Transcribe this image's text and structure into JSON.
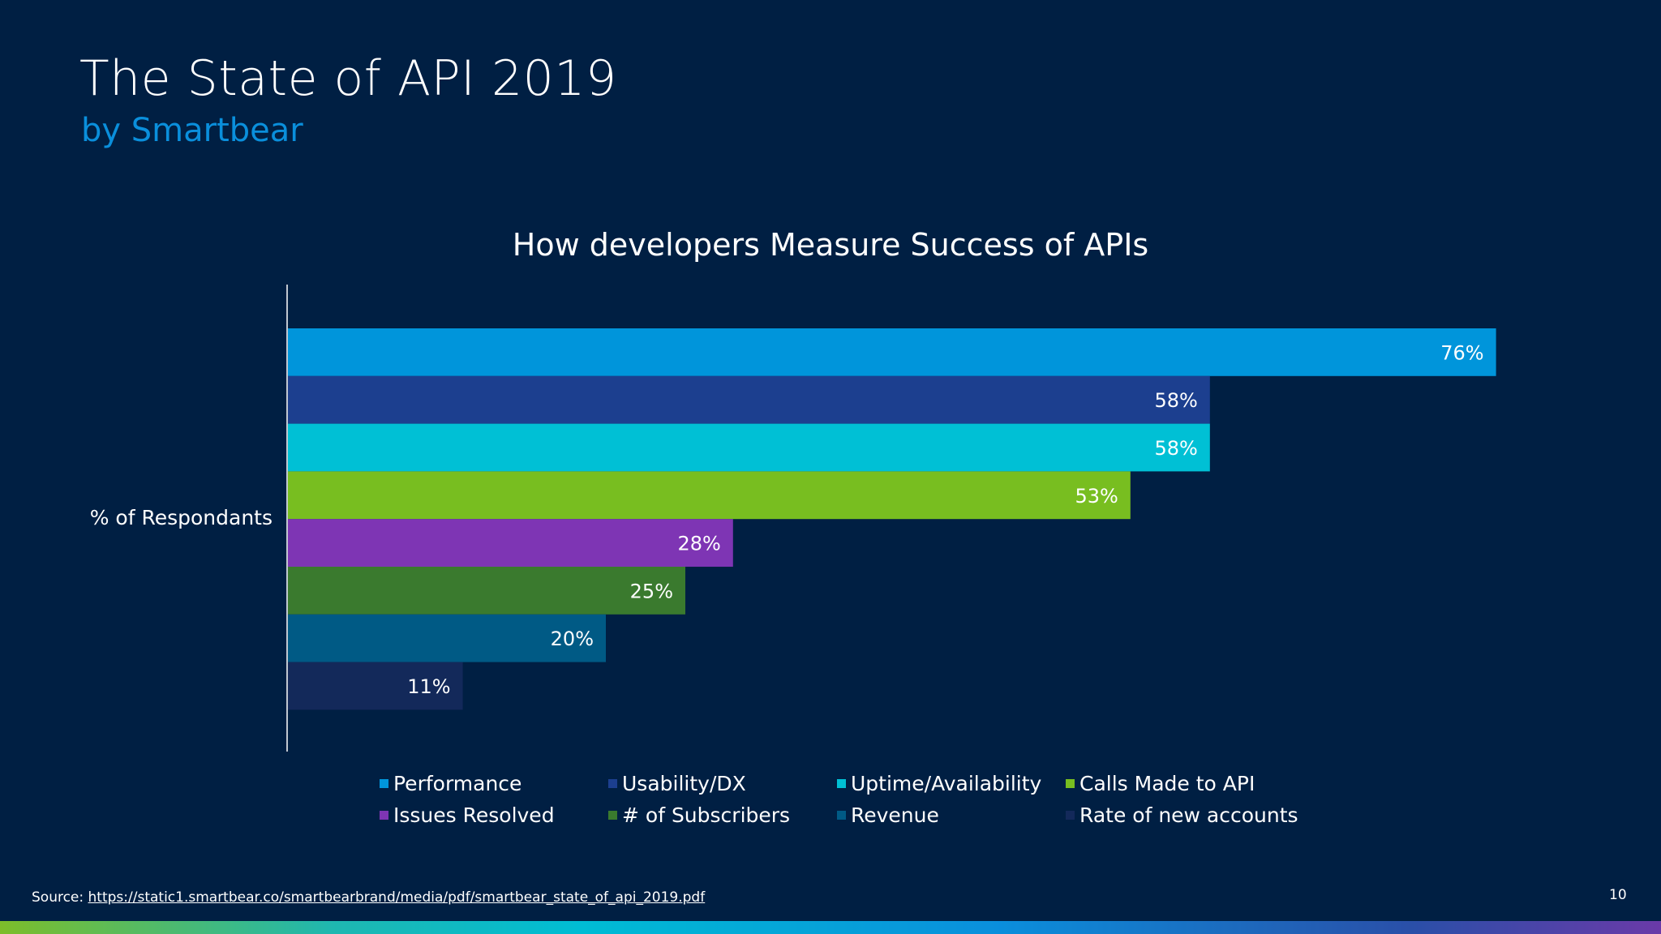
{
  "slide": {
    "title": "The State of API 2019",
    "subtitle": "by Smartbear",
    "source_label": "Source:",
    "source_url": "https://static1.smartbear.co/smartbearbrand/media/pdf/smartbear_state_of_api_2019.pdf",
    "page_number": "10"
  },
  "chart_data": {
    "type": "bar",
    "orientation": "horizontal",
    "title": "How developers Measure Success of APIs",
    "ylabel": "% of Respondants",
    "categories": [
      "% of Respondants"
    ],
    "legend_position": "bottom",
    "grid": false,
    "series": [
      {
        "name": "Performance",
        "values": [
          76
        ],
        "label": "76%",
        "color": "#0095db"
      },
      {
        "name": "Usability/DX",
        "values": [
          58
        ],
        "label": "58%",
        "color": "#1c3f8f"
      },
      {
        "name": "Uptime/Availability",
        "values": [
          58
        ],
        "label": "58%",
        "color": "#00c0d5"
      },
      {
        "name": "Calls Made to API",
        "values": [
          53
        ],
        "label": "53%",
        "color": "#78be20"
      },
      {
        "name": "Issues Resolved",
        "values": [
          28
        ],
        "label": "28%",
        "color": "#7e35b4"
      },
      {
        "name": "# of Subscribers",
        "values": [
          25
        ],
        "label": "25%",
        "color": "#3a7a2e"
      },
      {
        "name": "Revenue",
        "values": [
          20
        ],
        "label": "20%",
        "color": "#005a85"
      },
      {
        "name": "Rate of new accounts",
        "values": [
          11
        ],
        "label": "11%",
        "color": "#13295a"
      }
    ]
  }
}
